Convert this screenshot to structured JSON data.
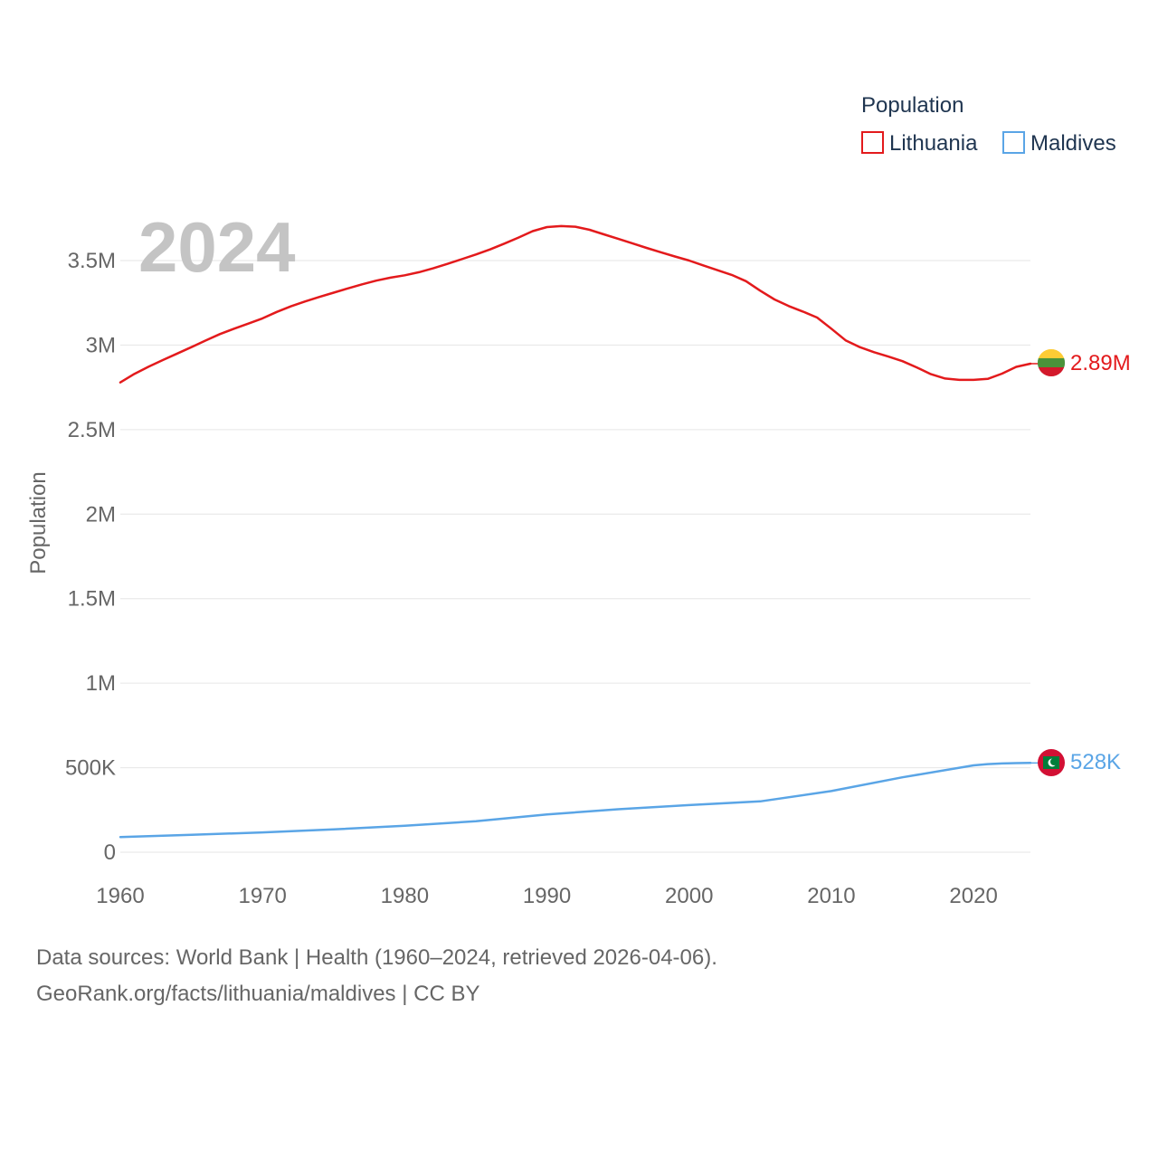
{
  "chart_data": {
    "type": "line",
    "title": "Population",
    "xlabel": "",
    "ylabel": "Population",
    "year_label": "2024",
    "xlim": [
      1960,
      2024
    ],
    "ylim": [
      0,
      3800000
    ],
    "x_ticks": [
      1960,
      1970,
      1980,
      1990,
      2000,
      2010,
      2020
    ],
    "x_tick_labels": [
      "1960",
      "1970",
      "1980",
      "1990",
      "2000",
      "2010",
      "2020"
    ],
    "y_ticks": [
      0,
      500000,
      1000000,
      1500000,
      2000000,
      2500000,
      3000000,
      3500000
    ],
    "y_tick_labels": [
      "0",
      "500K",
      "1M",
      "1.5M",
      "2M",
      "2.5M",
      "3M",
      "3.5M"
    ],
    "legend": {
      "title": "Population",
      "position": "top-right"
    },
    "grid": true,
    "series": [
      {
        "name": "Lithuania",
        "color": "#e31a1c",
        "end_label": "2.89M",
        "flag": "lithuania-flag",
        "x": [
          1960,
          1961,
          1962,
          1963,
          1964,
          1965,
          1966,
          1967,
          1968,
          1969,
          1970,
          1971,
          1972,
          1973,
          1974,
          1975,
          1976,
          1977,
          1978,
          1979,
          1980,
          1981,
          1982,
          1983,
          1984,
          1985,
          1986,
          1987,
          1988,
          1989,
          1990,
          1991,
          1992,
          1993,
          1994,
          1995,
          1996,
          1997,
          1998,
          1999,
          2000,
          2001,
          2002,
          2003,
          2004,
          2005,
          2006,
          2007,
          2008,
          2009,
          2010,
          2011,
          2012,
          2013,
          2014,
          2015,
          2016,
          2017,
          2018,
          2019,
          2020,
          2021,
          2022,
          2023,
          2024
        ],
        "values": [
          2779000,
          2830000,
          2873000,
          2912000,
          2950000,
          2988000,
          3027000,
          3065000,
          3097000,
          3127000,
          3158000,
          3196000,
          3229000,
          3258000,
          3285000,
          3310000,
          3335000,
          3359000,
          3381000,
          3399000,
          3413000,
          3431000,
          3454000,
          3480000,
          3508000,
          3536000,
          3566000,
          3600000,
          3636000,
          3674000,
          3698000,
          3704000,
          3700000,
          3682000,
          3655000,
          3629000,
          3602000,
          3575000,
          3549000,
          3524000,
          3500000,
          3471000,
          3443000,
          3415000,
          3378000,
          3322000,
          3270000,
          3231000,
          3198000,
          3163000,
          3097000,
          3028000,
          2988000,
          2958000,
          2932000,
          2905000,
          2868000,
          2828000,
          2802000,
          2794000,
          2794000,
          2800000,
          2831000,
          2871000,
          2890000
        ]
      },
      {
        "name": "Maldives",
        "color": "#5aa5e6",
        "end_label": "528K",
        "flag": "maldives-flag",
        "x": [
          1960,
          1965,
          1970,
          1975,
          1980,
          1985,
          1990,
          1995,
          2000,
          2005,
          2010,
          2015,
          2020,
          2021,
          2022,
          2023,
          2024
        ],
        "values": [
          90000,
          103000,
          117000,
          135000,
          157000,
          183000,
          223000,
          254000,
          279000,
          301000,
          362000,
          443000,
          514000,
          521000,
          525000,
          527000,
          528000
        ]
      }
    ]
  },
  "footer": {
    "line1": "Data sources: World Bank | Health (1960–2024, retrieved 2026-04-06).",
    "line2": "GeoRank.org/facts/lithuania/maldives | CC BY"
  }
}
